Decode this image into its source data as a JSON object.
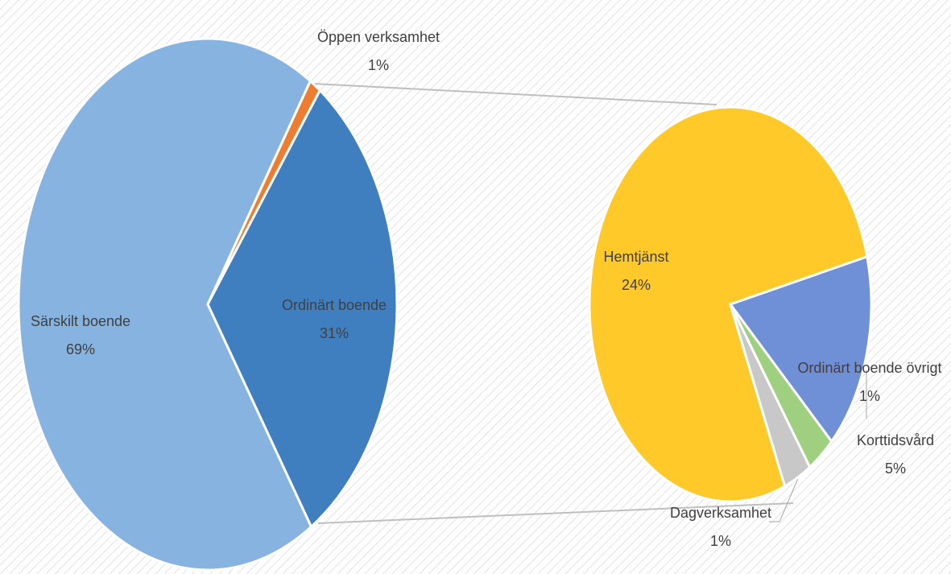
{
  "chart_data": [
    {
      "type": "pie",
      "categories": [
        "Öppen verksamhet",
        "Ordinärt boende",
        "Särskilt boende"
      ],
      "values": [
        1,
        31,
        69
      ],
      "value_labels": [
        "1%",
        "31%",
        "69%"
      ],
      "colors": [
        "#ed7d31",
        "#3f7fbf",
        "#86b3e0"
      ]
    },
    {
      "type": "pie",
      "categories": [
        "Korttidsvård",
        "Ordinärt boende övrigt",
        "Dagverksamhet",
        "Hemtjänst"
      ],
      "values": [
        5,
        1,
        1,
        24
      ],
      "value_labels": [
        "5%",
        "1%",
        "1%",
        "24%"
      ],
      "colors": [
        "#6f8fd6",
        "#9fd07f",
        "#c8c8c8",
        "#ffc929"
      ]
    }
  ]
}
